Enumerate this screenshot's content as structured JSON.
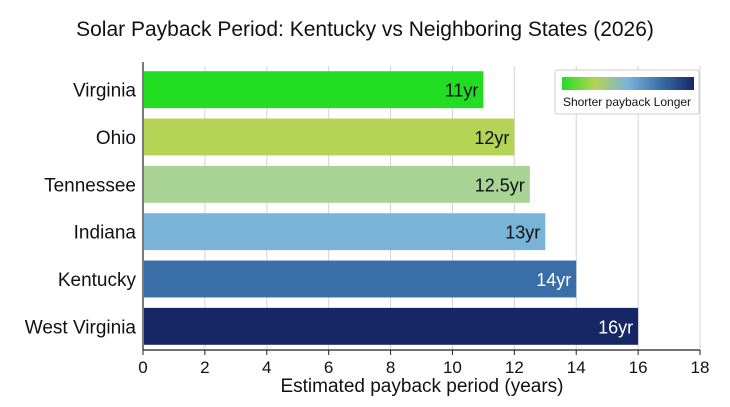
{
  "chart_data": {
    "type": "bar",
    "orientation": "horizontal",
    "title": "Solar Payback Period: Kentucky vs Neighboring States (2026)",
    "xlabel": "Estimated payback period (years)",
    "ylabel": "",
    "xlim": [
      0,
      18
    ],
    "xticks": [
      0,
      2,
      4,
      6,
      8,
      10,
      12,
      14,
      16,
      18
    ],
    "grid": "vertical",
    "categories": [
      "Virginia",
      "Ohio",
      "Tennessee",
      "Indiana",
      "Kentucky",
      "West Virginia"
    ],
    "values": [
      11,
      12,
      12.5,
      13,
      14,
      16
    ],
    "data_labels": [
      "11yr",
      "12yr",
      "12.5yr",
      "13yr",
      "14yr",
      "16yr"
    ],
    "bar_colors": [
      "#22dd22",
      "#b5d455",
      "#a8d394",
      "#79b4d8",
      "#3a6ea8",
      "#172766"
    ],
    "label_colors": [
      "#111111",
      "#111111",
      "#111111",
      "#111111",
      "#ffffff",
      "#ffffff"
    ],
    "legend": {
      "placement": "top-right",
      "text": "Shorter payback Longer",
      "gradient": [
        "#22dd22",
        "#b5d455",
        "#79b4d8",
        "#3a6ea8",
        "#172766"
      ]
    }
  }
}
